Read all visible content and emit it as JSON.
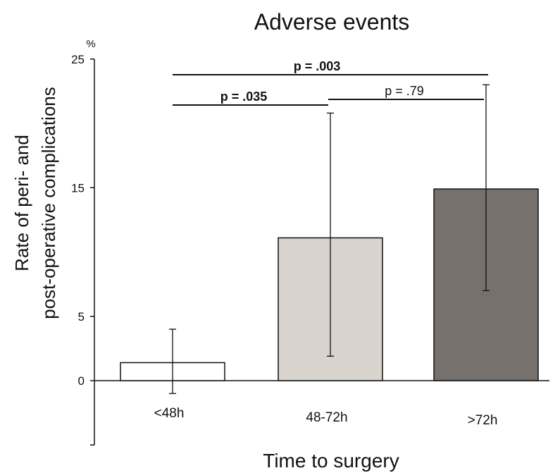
{
  "chart_data": {
    "type": "bar",
    "title": "Adverse events",
    "xlabel": "Time to surgery",
    "ylabel": [
      "Rate of peri- and",
      "post-operative complications"
    ],
    "y_unit": "%",
    "ylim": [
      -5,
      25
    ],
    "yticks": [
      "0",
      "5",
      "15",
      "25"
    ],
    "categories": [
      "<48h",
      "48-72h",
      ">72h"
    ],
    "values": [
      1.4,
      11.1,
      14.9
    ],
    "error_low": [
      -1.0,
      1.9,
      7.0
    ],
    "error_high": [
      4.0,
      20.8,
      23.0
    ],
    "bar_colors": [
      "#ffffff",
      "#d8d3cd",
      "#77716d"
    ],
    "comparisons": [
      {
        "from": 0,
        "to": 2,
        "label": "p = .003",
        "bold": true
      },
      {
        "from": 0,
        "to": 1,
        "label": "p = .035",
        "bold": true
      },
      {
        "from": 1,
        "to": 2,
        "label": "p = .79",
        "bold": false
      }
    ]
  }
}
